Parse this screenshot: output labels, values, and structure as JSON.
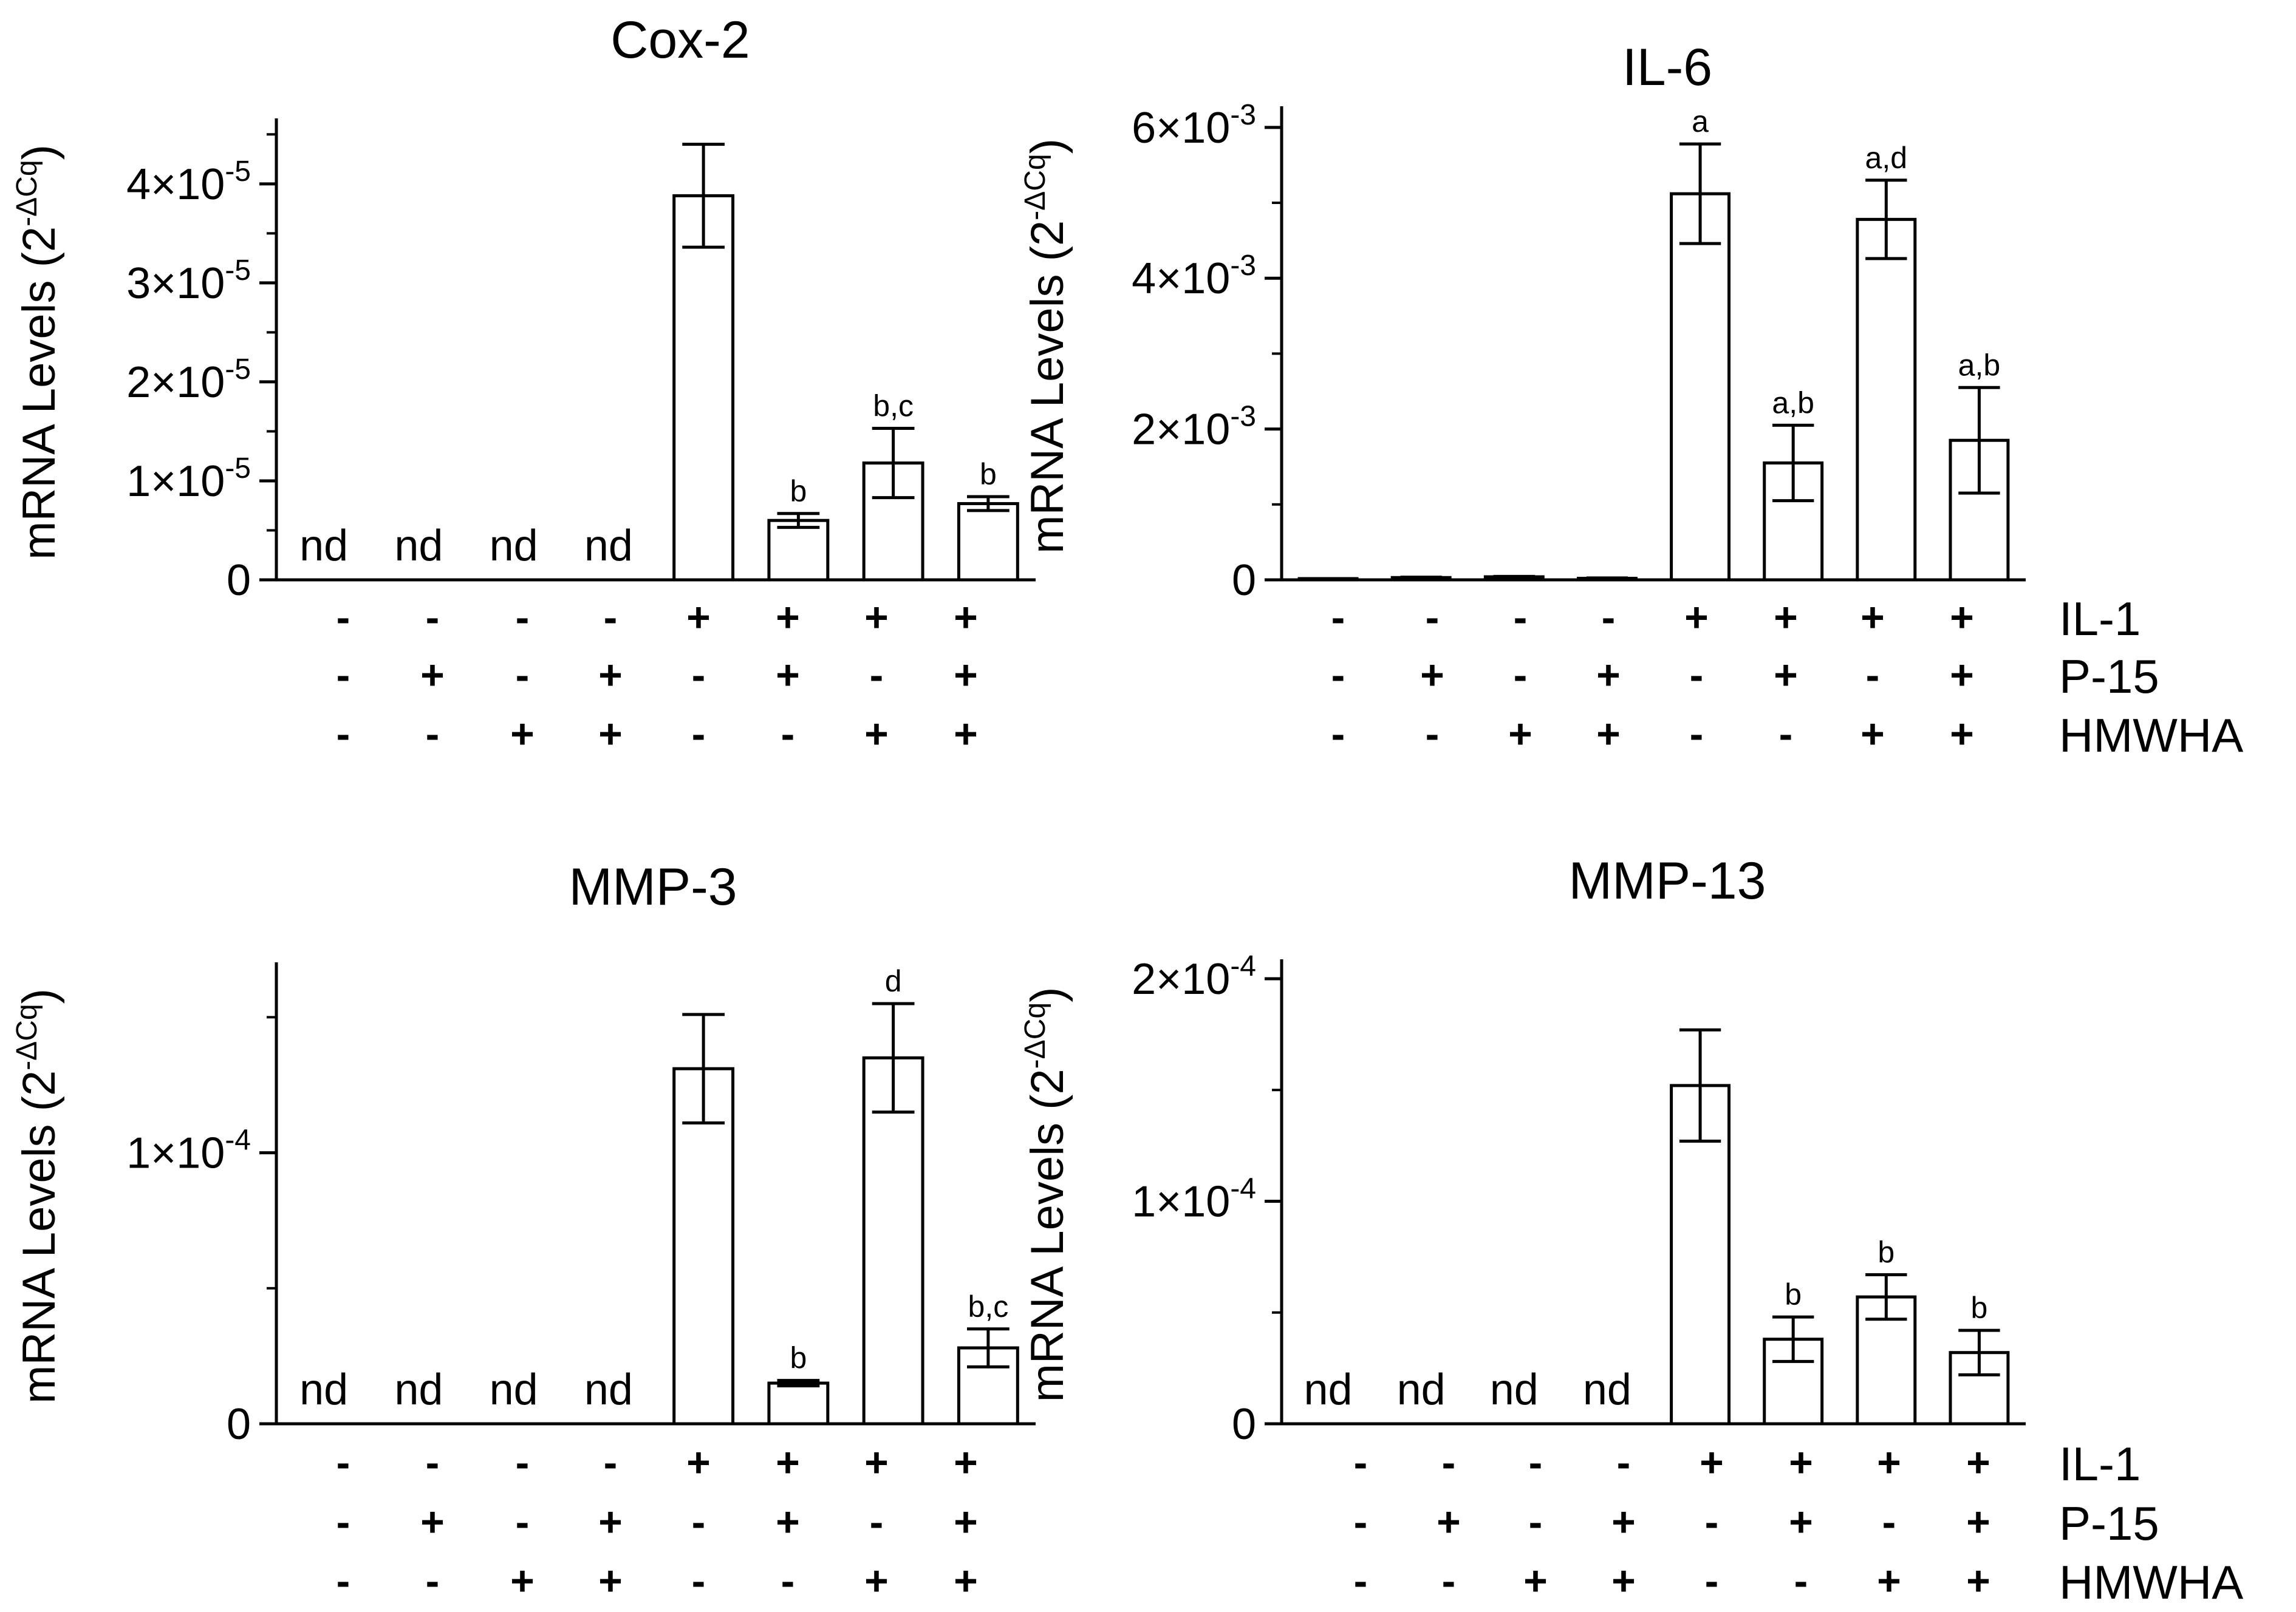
{
  "chart_data": [
    {
      "type": "bar",
      "title": "Cox-2",
      "ylabel": "mRNA Levels (2",
      "ylabel_sup": "-ΔCq",
      "ylabel_close": ")",
      "ylim": [
        0,
        4.6e-05
      ],
      "yticks": [
        {
          "value": 0,
          "base": "0",
          "exp": ""
        },
        {
          "value": 1e-05,
          "base": "1×10",
          "exp": "-5"
        },
        {
          "value": 2e-05,
          "base": "2×10",
          "exp": "-5"
        },
        {
          "value": 3e-05,
          "base": "3×10",
          "exp": "-5"
        },
        {
          "value": 4e-05,
          "base": "4×10",
          "exp": "-5"
        }
      ],
      "minor_ticks": [
        5e-06,
        1.5e-05,
        2.5e-05,
        3.5e-05,
        4.5e-05
      ],
      "bars": [
        {
          "value": null,
          "err": 0,
          "label": "nd",
          "letter": ""
        },
        {
          "value": null,
          "err": 0,
          "label": "nd",
          "letter": ""
        },
        {
          "value": null,
          "err": 0,
          "label": "nd",
          "letter": ""
        },
        {
          "value": null,
          "err": 0,
          "label": "nd",
          "letter": ""
        },
        {
          "value": 3.88e-05,
          "err": 5.2e-06,
          "label": "",
          "letter": ""
        },
        {
          "value": 6e-06,
          "err": 7e-07,
          "label": "",
          "letter": "b"
        },
        {
          "value": 1.18e-05,
          "err": 3.5e-06,
          "label": "",
          "letter": "b,c"
        },
        {
          "value": 7.7e-06,
          "err": 7e-07,
          "label": "",
          "letter": "b"
        }
      ],
      "conditions": {
        "IL-1": [
          "-",
          "-",
          "-",
          "-",
          "+",
          "+",
          "+",
          "+"
        ],
        "P-15": [
          "-",
          "+",
          "-",
          "+",
          "-",
          "+",
          "-",
          "+"
        ],
        "HMWHA": [
          "-",
          "-",
          "+",
          "+",
          "-",
          "-",
          "+",
          "+"
        ]
      },
      "show_factor_names": false
    },
    {
      "type": "bar",
      "title": "IL-6",
      "ylabel": "mRNA Levels (2",
      "ylabel_sup": "-ΔCq",
      "ylabel_close": ")",
      "ylim": [
        0,
        0.0062
      ],
      "yticks": [
        {
          "value": 0,
          "base": "0",
          "exp": ""
        },
        {
          "value": 0.002,
          "base": "2×10",
          "exp": "-3"
        },
        {
          "value": 0.004,
          "base": "4×10",
          "exp": "-3"
        },
        {
          "value": 0.006,
          "base": "6×10",
          "exp": "-3"
        }
      ],
      "minor_ticks": [
        0.001,
        0.003,
        0.005
      ],
      "bars": [
        {
          "value": 1e-05,
          "err": 0,
          "label": "",
          "letter": ""
        },
        {
          "value": 3e-05,
          "err": 5e-06,
          "label": "",
          "letter": ""
        },
        {
          "value": 4e-05,
          "err": 5e-06,
          "label": "",
          "letter": ""
        },
        {
          "value": 2e-05,
          "err": 5e-06,
          "label": "",
          "letter": ""
        },
        {
          "value": 0.00512,
          "err": 0.00066,
          "label": "",
          "letter": "a"
        },
        {
          "value": 0.00155,
          "err": 0.0005,
          "label": "",
          "letter": "a,b"
        },
        {
          "value": 0.00478,
          "err": 0.00052,
          "label": "",
          "letter": "a,d"
        },
        {
          "value": 0.00185,
          "err": 0.0007,
          "label": "",
          "letter": "a,b"
        }
      ],
      "conditions": {
        "IL-1": [
          "-",
          "-",
          "-",
          "-",
          "+",
          "+",
          "+",
          "+"
        ],
        "P-15": [
          "-",
          "+",
          "-",
          "+",
          "-",
          "+",
          "-",
          "+"
        ],
        "HMWHA": [
          "-",
          "-",
          "+",
          "+",
          "-",
          "-",
          "+",
          "+"
        ]
      },
      "show_factor_names": true
    },
    {
      "type": "bar",
      "title": "MMP-3",
      "ylabel": "mRNA Levels (2",
      "ylabel_sup": "-ΔCq",
      "ylabel_close": ")",
      "ylim": [
        0,
        0.000168
      ],
      "yticks": [
        {
          "value": 0,
          "base": "0",
          "exp": ""
        },
        {
          "value": 0.0001,
          "base": "1×10",
          "exp": "-4"
        }
      ],
      "minor_ticks": [
        5e-05,
        0.00015
      ],
      "bars": [
        {
          "value": null,
          "err": 0,
          "label": "nd",
          "letter": ""
        },
        {
          "value": null,
          "err": 0,
          "label": "nd",
          "letter": ""
        },
        {
          "value": null,
          "err": 0,
          "label": "nd",
          "letter": ""
        },
        {
          "value": null,
          "err": 0,
          "label": "nd",
          "letter": ""
        },
        {
          "value": 0.000131,
          "err": 2e-05,
          "label": "",
          "letter": ""
        },
        {
          "value": 1.5e-05,
          "err": 1e-06,
          "label": "",
          "letter": "b"
        },
        {
          "value": 0.000135,
          "err": 2e-05,
          "label": "",
          "letter": "d"
        },
        {
          "value": 2.8e-05,
          "err": 7e-06,
          "label": "",
          "letter": "b,c"
        }
      ],
      "conditions": {
        "IL-1": [
          "-",
          "-",
          "-",
          "-",
          "+",
          "+",
          "+",
          "+"
        ],
        "P-15": [
          "-",
          "+",
          "-",
          "+",
          "-",
          "+",
          "-",
          "+"
        ],
        "HMWHA": [
          "-",
          "-",
          "+",
          "+",
          "-",
          "-",
          "+",
          "+"
        ]
      },
      "show_factor_names": false
    },
    {
      "type": "bar",
      "title": "MMP-13",
      "ylabel": "mRNA Levels (2",
      "ylabel_sup": "-ΔCq",
      "ylabel_close": ")",
      "ylim": [
        0,
        0.000206
      ],
      "yticks": [
        {
          "value": 0,
          "base": "0",
          "exp": ""
        },
        {
          "value": 0.0001,
          "base": "1×10",
          "exp": "-4"
        },
        {
          "value": 0.0002,
          "base": "2×10",
          "exp": "-4"
        }
      ],
      "minor_ticks": [
        5e-05,
        0.00015
      ],
      "bars": [
        {
          "value": null,
          "err": 0,
          "label": "nd",
          "letter": ""
        },
        {
          "value": null,
          "err": 0,
          "label": "nd",
          "letter": ""
        },
        {
          "value": null,
          "err": 0,
          "label": "nd",
          "letter": ""
        },
        {
          "value": null,
          "err": 0,
          "label": "nd",
          "letter": ""
        },
        {
          "value": 0.000152,
          "err": 2.5e-05,
          "label": "",
          "letter": ""
        },
        {
          "value": 3.8e-05,
          "err": 1e-05,
          "label": "",
          "letter": "b"
        },
        {
          "value": 5.7e-05,
          "err": 1e-05,
          "label": "",
          "letter": "b"
        },
        {
          "value": 3.2e-05,
          "err": 1e-05,
          "label": "",
          "letter": "b"
        }
      ],
      "conditions": {
        "IL-1": [
          "-",
          "-",
          "-",
          "-",
          "+",
          "+",
          "+",
          "+"
        ],
        "P-15": [
          "-",
          "+",
          "-",
          "+",
          "-",
          "+",
          "-",
          "+"
        ],
        "HMWHA": [
          "-",
          "-",
          "+",
          "+",
          "-",
          "-",
          "+",
          "+"
        ]
      },
      "show_factor_names": true
    }
  ]
}
